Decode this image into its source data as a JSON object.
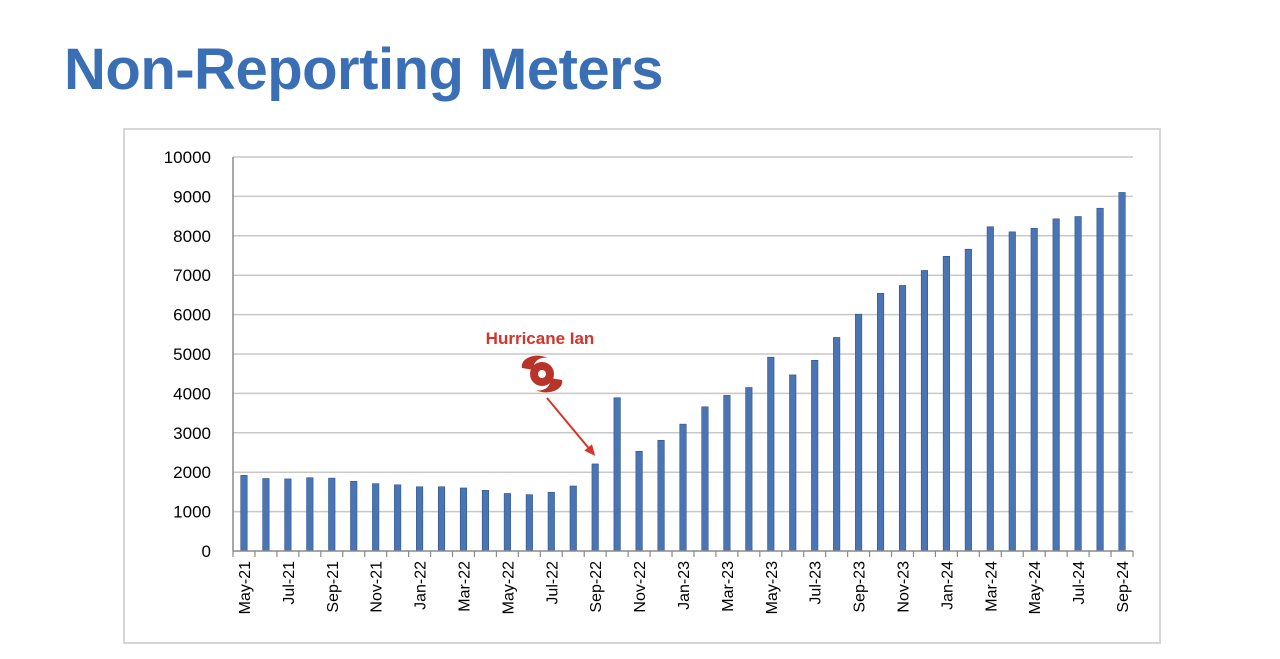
{
  "page": {
    "title": "Non-Reporting Meters"
  },
  "colors": {
    "title": "#3a6fb5",
    "bar": "#4a74b3",
    "bar_edge": "#2f5689",
    "annotation": "#d8332a",
    "grid": "#c8c8c8"
  },
  "chart_data": {
    "type": "bar",
    "title": "",
    "xlabel": "",
    "ylabel": "",
    "ylim": [
      0,
      10000
    ],
    "yticks": [
      0,
      1000,
      2000,
      3000,
      4000,
      5000,
      6000,
      7000,
      8000,
      9000,
      10000
    ],
    "grid": true,
    "categories": [
      "May-21",
      "Jun-21",
      "Jul-21",
      "Aug-21",
      "Sep-21",
      "Oct-21",
      "Nov-21",
      "Dec-21",
      "Jan-22",
      "Feb-22",
      "Mar-22",
      "Apr-22",
      "May-22",
      "Jun-22",
      "Jul-22",
      "Aug-22",
      "Sep-22",
      "Oct-22",
      "Nov-22",
      "Dec-22",
      "Jan-23",
      "Feb-23",
      "Mar-23",
      "Apr-23",
      "May-23",
      "Jun-23",
      "Jul-23",
      "Aug-23",
      "Sep-23",
      "Oct-23",
      "Nov-23",
      "Dec-23",
      "Jan-24",
      "Feb-24",
      "Mar-24",
      "Apr-24",
      "May-24",
      "Jun-24",
      "Jul-24",
      "Aug-24",
      "Sep-24"
    ],
    "xtick_labels": [
      "May-21",
      "Jul-21",
      "Sep-21",
      "Nov-21",
      "Jan-22",
      "Mar-22",
      "May-22",
      "Jul-22",
      "Sep-22",
      "Nov-22",
      "Jan-23",
      "Mar-23",
      "May-23",
      "Jul-23",
      "Sep-23",
      "Nov-23",
      "Jan-24",
      "Mar-24",
      "May-24",
      "Jul-24",
      "Sep-24"
    ],
    "values": [
      1920,
      1840,
      1830,
      1860,
      1850,
      1770,
      1710,
      1680,
      1630,
      1630,
      1600,
      1540,
      1460,
      1430,
      1490,
      1650,
      2210,
      3890,
      2530,
      2810,
      3220,
      3660,
      3950,
      4150,
      4920,
      4470,
      4840,
      5420,
      6010,
      6540,
      6740,
      7120,
      7480,
      7660,
      8230,
      8100,
      8190,
      8430,
      8490,
      8700,
      9100
    ],
    "annotations": [
      {
        "label": "Hurricane Ian",
        "icon": "hurricane-icon",
        "target_category": "Sep-22"
      }
    ]
  }
}
